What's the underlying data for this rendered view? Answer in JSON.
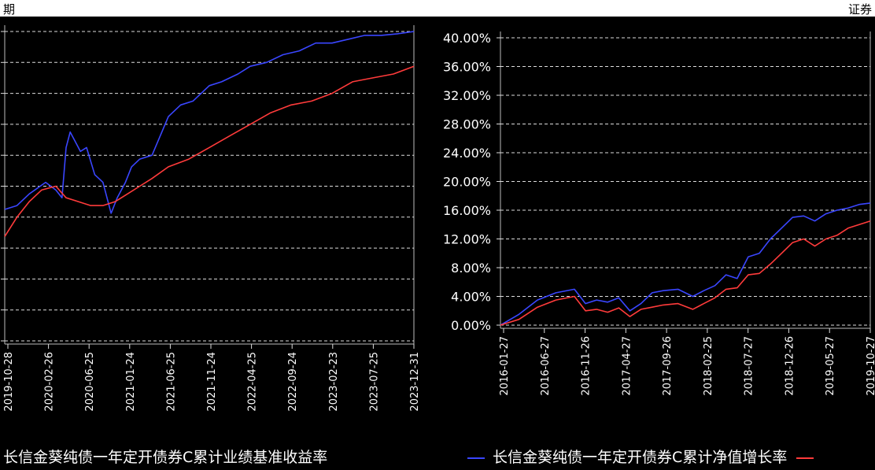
{
  "header": {
    "left_text": "期",
    "right_text": "证券"
  },
  "chart_data": [
    {
      "type": "line",
      "title": "",
      "xlabel": "",
      "ylabel": "",
      "x_ticks": [
        "2019-10-28",
        "2020-02-26",
        "2020-06-25",
        "2021-01-24",
        "2021-06-25",
        "2021-11-24",
        "2022-04-25",
        "2022-09-24",
        "2023-02-23",
        "2023-07-25",
        "2023-12-31"
      ],
      "ylim": [
        0,
        40
      ],
      "y_gridlines": [
        0,
        4,
        8,
        12,
        16,
        20,
        24,
        28,
        32,
        36,
        40
      ],
      "grid": true,
      "series": [
        {
          "name": "",
          "color": "#3a46ff",
          "x": [
            0,
            0.3,
            0.6,
            1.0,
            1.25,
            1.4,
            1.5,
            1.6,
            1.7,
            1.85,
            2.0,
            2.2,
            2.4,
            2.6,
            2.75,
            2.95,
            3.1,
            3.3,
            3.6,
            4.0,
            4.3,
            4.6,
            5.0,
            5.3,
            5.7,
            6.0,
            6.4,
            6.8,
            7.2,
            7.6,
            8.0,
            8.4,
            8.8,
            9.2,
            9.6,
            10.0
          ],
          "y": [
            17,
            17.5,
            19,
            20.5,
            19.5,
            18.5,
            25,
            27,
            26,
            24.5,
            25,
            21.5,
            20.5,
            16.5,
            18.5,
            20.5,
            22.5,
            23.5,
            24,
            29,
            30.5,
            31,
            33,
            33.5,
            34.5,
            35.5,
            36,
            37,
            37.5,
            38.5,
            38.5,
            39,
            39.5,
            39.5,
            39.7,
            40
          ]
        },
        {
          "name": "长信金葵纯债一年定开债券C累计业绩基准收益率",
          "color": "#ff3b3b",
          "x": [
            0,
            0.3,
            0.6,
            0.9,
            1.25,
            1.5,
            1.8,
            2.1,
            2.4,
            2.7,
            3.0,
            3.3,
            3.6,
            4.0,
            4.5,
            5.0,
            5.5,
            6.0,
            6.5,
            7.0,
            7.5,
            8.0,
            8.5,
            9.0,
            9.5,
            10.0
          ],
          "y": [
            13.5,
            16,
            18,
            19.5,
            20,
            18.5,
            18,
            17.5,
            17.5,
            18,
            19,
            20,
            21,
            22.5,
            23.5,
            25,
            26.5,
            28,
            29.5,
            30.5,
            31,
            32,
            33.5,
            34,
            34.5,
            35.5
          ]
        }
      ]
    },
    {
      "type": "line",
      "title": "",
      "xlabel": "",
      "ylabel": "",
      "x_ticks": [
        "2016-01-27",
        "2016-06-27",
        "2016-11-26",
        "2017-04-27",
        "2017-09-26",
        "2018-02-25",
        "2018-07-27",
        "2018-12-26",
        "2019-05-27",
        "2019-10-27"
      ],
      "y_ticks": [
        "0.00%",
        "4.00%",
        "8.00%",
        "12.00%",
        "16.00%",
        "20.00%",
        "24.00%",
        "28.00%",
        "32.00%",
        "36.00%",
        "40.00%"
      ],
      "ylim": [
        0,
        40
      ],
      "grid": true,
      "series": [
        {
          "name": "长信金葵纯债一年定开债券C累计净值增长率",
          "color": "#3a46ff",
          "x": [
            0,
            0.5,
            1.0,
            1.5,
            2.0,
            2.3,
            2.6,
            2.9,
            3.2,
            3.5,
            3.8,
            4.1,
            4.4,
            4.8,
            5.2,
            5.5,
            5.8,
            6.1,
            6.4,
            6.7,
            7.0,
            7.3,
            7.6,
            7.9,
            8.2,
            8.5,
            8.8,
            9.1,
            9.4,
            9.7,
            10.0
          ],
          "y": [
            0,
            1.5,
            3.5,
            4.5,
            5,
            3,
            3.5,
            3.2,
            3.8,
            2,
            3,
            4.5,
            4.8,
            5,
            4,
            4.8,
            5.5,
            7,
            6.5,
            9.5,
            10,
            12,
            13.5,
            15,
            15.2,
            14.5,
            15.5,
            16,
            16.3,
            16.8,
            17
          ]
        },
        {
          "name": "",
          "color": "#ff3b3b",
          "x": [
            0,
            0.5,
            1.0,
            1.5,
            2.0,
            2.3,
            2.6,
            2.9,
            3.2,
            3.5,
            3.8,
            4.1,
            4.4,
            4.8,
            5.2,
            5.5,
            5.8,
            6.1,
            6.4,
            6.7,
            7.0,
            7.3,
            7.6,
            7.9,
            8.2,
            8.5,
            8.8,
            9.1,
            9.4,
            9.7,
            10.0
          ],
          "y": [
            0,
            0.8,
            2.5,
            3.5,
            4,
            2,
            2.2,
            1.8,
            2.4,
            1.2,
            2.2,
            2.5,
            2.8,
            3,
            2.2,
            3,
            3.8,
            5,
            5.2,
            7,
            7.2,
            8.5,
            10,
            11.5,
            12,
            11,
            12,
            12.5,
            13.5,
            14,
            14.5
          ]
        }
      ]
    }
  ],
  "legend": {
    "left": {
      "label": "长信金葵纯债一年定开债券C累计业绩基准收益率"
    },
    "right": {
      "label": "长信金葵纯债一年定开债券C累计净值增长率"
    }
  }
}
